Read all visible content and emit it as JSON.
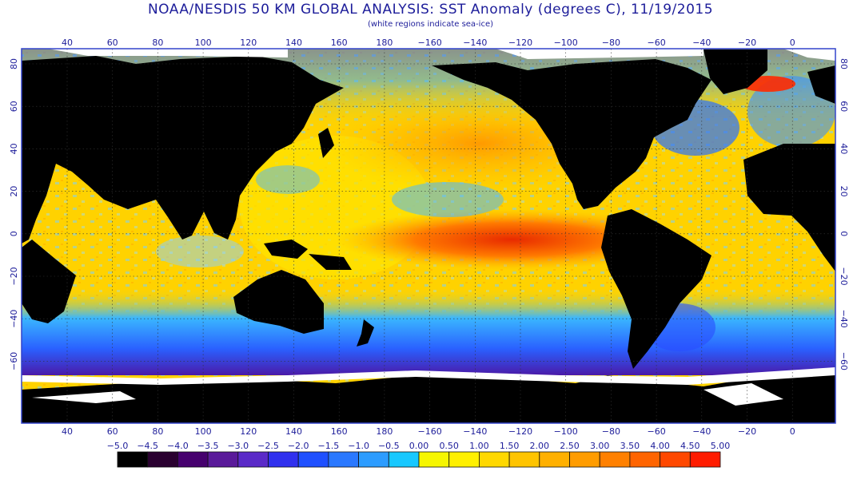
{
  "title": "NOAA/NESDIS 50 KM GLOBAL ANALYSIS: SST Anomaly (degrees C), 11/19/2015",
  "subtitle": "(white regions indicate sea-ice)",
  "map": {
    "lon_ticks": [
      "40",
      "60",
      "80",
      "100",
      "120",
      "140",
      "160",
      "180",
      "−160",
      "−140",
      "−120",
      "−100",
      "−80",
      "−60",
      "−40",
      "−20",
      "0"
    ],
    "lat_ticks_left": [
      "80",
      "60",
      "40",
      "20",
      "0",
      "−20",
      "−40",
      "−60"
    ],
    "lat_ticks_right": [
      "80",
      "60",
      "40",
      "20",
      "0",
      "−20",
      "−40",
      "−60"
    ]
  },
  "colorbar": {
    "labels": [
      "−5.0",
      "−4.5",
      "−4.0",
      "−3.5",
      "−3.0",
      "−2.5",
      "−2.0",
      "−1.5",
      "−1.0",
      "−0.5",
      "0.00",
      "0.50",
      "1.00",
      "1.50",
      "2.00",
      "2.50",
      "3.00",
      "3.50",
      "4.00",
      "4.50",
      "5.00"
    ],
    "colors": [
      "#000000",
      "#2a0030",
      "#46006e",
      "#5a1a9a",
      "#5a2ac8",
      "#3030ee",
      "#1f50ff",
      "#2a78ff",
      "#2c9cff",
      "#18c8ff",
      "#f6f600",
      "#fff000",
      "#ffd800",
      "#ffc400",
      "#ffb000",
      "#ff9c00",
      "#ff8000",
      "#ff6400",
      "#ff4800",
      "#ff1c00"
    ]
  },
  "colors": {
    "land": "#000000",
    "ice": "#ffffff",
    "frame": "#3344cc",
    "text": "#1d1d9a"
  }
}
